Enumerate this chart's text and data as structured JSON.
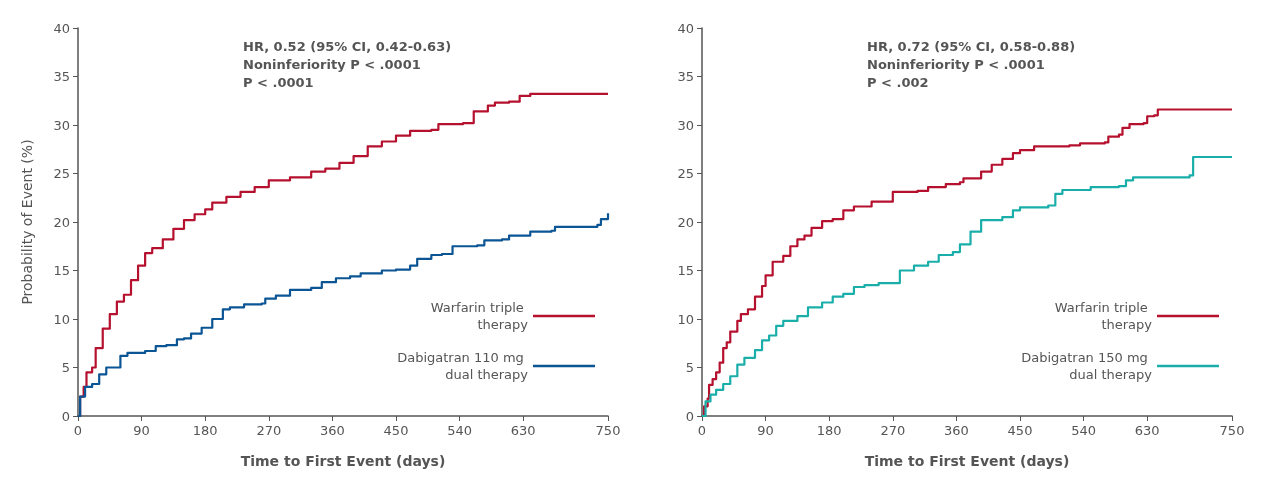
{
  "chart_data": [
    {
      "type": "step",
      "xlabel": "Time to First Event (days)",
      "ylabel": "Probability of Event (%)",
      "xlim": [
        0,
        750
      ],
      "xticks": [
        0,
        90,
        180,
        270,
        360,
        450,
        540,
        630,
        750
      ],
      "ylim": [
        0,
        40
      ],
      "yticks": [
        0,
        5,
        10,
        15,
        20,
        25,
        30,
        35,
        40
      ],
      "grid": false,
      "legend": "bottom right",
      "annotations": [
        "HR, 0.52 (95% CI, 0.42-0.63)",
        "Noninferiority P < .0001",
        "P < .0001"
      ],
      "series": [
        {
          "name": "Warfarin triple therapy",
          "color": "#b5102e",
          "x": [
            0,
            3,
            8,
            12,
            20,
            25,
            35,
            45,
            55,
            65,
            75,
            85,
            95,
            105,
            120,
            135,
            150,
            165,
            180,
            190,
            210,
            230,
            250,
            270,
            300,
            330,
            350,
            370,
            390,
            410,
            430,
            450,
            470,
            500,
            510,
            545,
            560,
            580,
            590,
            610,
            625,
            640,
            750
          ],
          "values": [
            0,
            2,
            3,
            4.5,
            5,
            7,
            9,
            10.5,
            11.8,
            12.5,
            14,
            15.5,
            16.8,
            17.3,
            18.2,
            19.3,
            20.2,
            20.8,
            21.3,
            22,
            22.6,
            23.1,
            23.6,
            24.3,
            24.6,
            25.2,
            25.5,
            26.1,
            26.8,
            27.8,
            28.3,
            28.9,
            29.4,
            29.5,
            30.1,
            30.2,
            31.4,
            32,
            32.3,
            32.4,
            33,
            33.2,
            33.2
          ]
        },
        {
          "name": "Dabigatran 110 mg dual therapy",
          "color": "#0b5595",
          "x": [
            0,
            3,
            10,
            20,
            30,
            40,
            60,
            70,
            95,
            110,
            125,
            140,
            150,
            160,
            175,
            190,
            205,
            215,
            235,
            260,
            265,
            280,
            300,
            330,
            345,
            365,
            385,
            400,
            430,
            450,
            470,
            480,
            500,
            515,
            530,
            565,
            575,
            600,
            610,
            625,
            640,
            670,
            675,
            735,
            740,
            750
          ],
          "values": [
            0,
            2,
            3,
            3.3,
            4.3,
            5,
            6.2,
            6.5,
            6.7,
            7.2,
            7.3,
            7.9,
            8,
            8.5,
            9.1,
            10,
            11,
            11.2,
            11.5,
            11.6,
            12.1,
            12.4,
            13,
            13.2,
            13.8,
            14.2,
            14.4,
            14.7,
            15,
            15.1,
            15.5,
            16.2,
            16.6,
            16.7,
            17.5,
            17.6,
            18.1,
            18.2,
            18.6,
            18.6,
            19,
            19.1,
            19.5,
            19.7,
            20.3,
            20.9
          ]
        }
      ]
    },
    {
      "type": "step",
      "xlabel": "Time to First Event (days)",
      "xlim": [
        0,
        750
      ],
      "xticks": [
        0,
        90,
        180,
        270,
        360,
        450,
        540,
        630,
        750
      ],
      "ylim": [
        0,
        40
      ],
      "yticks": [
        0,
        5,
        10,
        15,
        20,
        25,
        30,
        35,
        40
      ],
      "grid": false,
      "legend": "bottom right",
      "annotations": [
        "HR, 0.72 (95% CI, 0.58-0.88)",
        "Noninferiority P < .0001",
        "P < .002"
      ],
      "series": [
        {
          "name": "Warfarin triple therapy",
          "color": "#b5102e",
          "x": [
            0,
            3,
            8,
            10,
            15,
            20,
            25,
            30,
            35,
            40,
            50,
            55,
            65,
            75,
            85,
            90,
            100,
            115,
            125,
            135,
            145,
            155,
            170,
            185,
            200,
            215,
            240,
            270,
            305,
            320,
            345,
            365,
            370,
            395,
            410,
            425,
            440,
            450,
            470,
            520,
            535,
            570,
            575,
            590,
            595,
            605,
            625,
            630,
            640,
            645,
            750
          ],
          "values": [
            0,
            1,
            1.8,
            3.2,
            3.8,
            4.5,
            5.5,
            7,
            7.6,
            8.7,
            9.8,
            10.5,
            11,
            12.3,
            13.4,
            14.5,
            15.9,
            16.5,
            17.5,
            18.2,
            18.6,
            19.4,
            20.1,
            20.3,
            21.2,
            21.6,
            22.1,
            23.1,
            23.2,
            23.6,
            23.9,
            24.1,
            24.5,
            25.2,
            25.9,
            26.5,
            27.1,
            27.4,
            27.8,
            27.9,
            28.1,
            28.2,
            28.8,
            29,
            29.7,
            30.1,
            30.2,
            30.9,
            31,
            31.6,
            31.6
          ]
        },
        {
          "name": "Dabigatran 150 mg dual therapy",
          "color": "#1aaeaa",
          "x": [
            0,
            5,
            12,
            20,
            30,
            40,
            50,
            60,
            75,
            85,
            95,
            105,
            115,
            135,
            150,
            170,
            185,
            200,
            215,
            230,
            250,
            280,
            300,
            320,
            335,
            355,
            365,
            380,
            395,
            425,
            440,
            450,
            490,
            500,
            510,
            550,
            590,
            600,
            610,
            690,
            695,
            750
          ],
          "values": [
            0,
            1.5,
            2.2,
            2.7,
            3.3,
            4.1,
            5.3,
            6,
            6.8,
            7.8,
            8.3,
            9.3,
            9.8,
            10.3,
            11.2,
            11.7,
            12.3,
            12.6,
            13.3,
            13.5,
            13.7,
            15,
            15.5,
            15.9,
            16.6,
            16.9,
            17.7,
            19,
            20.2,
            20.5,
            21.2,
            21.5,
            21.7,
            22.9,
            23.3,
            23.6,
            23.7,
            24.3,
            24.6,
            24.8,
            26.7,
            26.7
          ]
        }
      ]
    }
  ]
}
